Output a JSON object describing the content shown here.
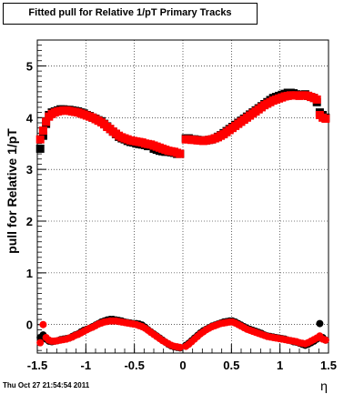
{
  "title": "Fitted pull for Relative 1/pT  Primary Tracks",
  "footer": "Thu Oct 27 21:54:54 2011",
  "chart_data": {
    "type": "scatter",
    "title": "Fitted pull for Relative 1/pT  Primary Tracks",
    "xlabel": "η",
    "ylabel": "pull for Relative 1/pT",
    "xlim": [
      -1.5,
      1.5
    ],
    "ylim": [
      -0.55,
      5.5
    ],
    "x_ticks": [
      "-1.5",
      "-1",
      "-0.5",
      "0",
      "0.5",
      "1",
      "1.5"
    ],
    "y_ticks": [
      "0",
      "1",
      "2",
      "3",
      "4",
      "5"
    ],
    "grid": true,
    "series": [
      {
        "color": "#000000",
        "marker": "square",
        "x": [
          -1.47,
          -1.44,
          -1.41,
          -1.38,
          -1.35,
          -1.32,
          -1.29,
          -1.26,
          -1.23,
          -1.2,
          -1.17,
          -1.14,
          -1.11,
          -1.08,
          -1.05,
          -1.02,
          -0.99,
          -0.96,
          -0.93,
          -0.9,
          -0.87,
          -0.84,
          -0.81,
          -0.78,
          -0.75,
          -0.72,
          -0.69,
          -0.66,
          -0.63,
          -0.6,
          -0.57,
          -0.54,
          -0.51,
          -0.48,
          -0.45,
          -0.42,
          -0.39,
          -0.36,
          -0.33,
          -0.3,
          -0.27,
          -0.24,
          -0.21,
          -0.18,
          -0.15,
          -0.12,
          -0.09,
          -0.06,
          -0.03,
          0.03,
          0.06,
          0.09,
          0.12,
          0.15,
          0.18,
          0.21,
          0.24,
          0.27,
          0.3,
          0.33,
          0.36,
          0.39,
          0.42,
          0.45,
          0.48,
          0.51,
          0.54,
          0.57,
          0.6,
          0.63,
          0.66,
          0.69,
          0.72,
          0.75,
          0.78,
          0.81,
          0.84,
          0.87,
          0.9,
          0.93,
          0.96,
          0.99,
          1.02,
          1.05,
          1.08,
          1.11,
          1.14,
          1.17,
          1.2,
          1.23,
          1.26,
          1.29,
          1.32,
          1.35,
          1.38,
          1.41,
          1.44,
          1.47
        ],
        "y": [
          3.4,
          3.65,
          3.88,
          4.05,
          4.1,
          4.12,
          4.14,
          4.16,
          4.16,
          4.15,
          4.15,
          4.14,
          4.13,
          4.12,
          4.1,
          4.08,
          4.05,
          4.03,
          4.0,
          3.98,
          3.95,
          3.93,
          3.88,
          3.83,
          3.78,
          3.73,
          3.68,
          3.63,
          3.6,
          3.58,
          3.55,
          3.53,
          3.52,
          3.5,
          3.49,
          3.48,
          3.47,
          3.45,
          3.45,
          3.4,
          3.38,
          3.36,
          3.35,
          3.34,
          3.34,
          3.33,
          3.32,
          3.3,
          3.3,
          3.6,
          3.6,
          3.58,
          3.58,
          3.57,
          3.56,
          3.56,
          3.56,
          3.57,
          3.58,
          3.6,
          3.63,
          3.66,
          3.7,
          3.74,
          3.78,
          3.82,
          3.86,
          3.9,
          3.94,
          3.98,
          4.02,
          4.06,
          4.1,
          4.14,
          4.18,
          4.22,
          4.26,
          4.3,
          4.34,
          4.38,
          4.4,
          4.42,
          4.44,
          4.46,
          4.48,
          4.48,
          4.47,
          4.45,
          4.43,
          4.44,
          4.45,
          4.42,
          4.4,
          4.38,
          4.3,
          4.1,
          4.05,
          4.0
        ]
      },
      {
        "color": "#ff0000",
        "marker": "square",
        "x": [
          -1.47,
          -1.44,
          -1.41,
          -1.38,
          -1.35,
          -1.32,
          -1.29,
          -1.26,
          -1.23,
          -1.2,
          -1.17,
          -1.14,
          -1.11,
          -1.08,
          -1.05,
          -1.02,
          -0.99,
          -0.96,
          -0.93,
          -0.9,
          -0.87,
          -0.84,
          -0.81,
          -0.78,
          -0.75,
          -0.72,
          -0.69,
          -0.66,
          -0.63,
          -0.6,
          -0.57,
          -0.54,
          -0.51,
          -0.48,
          -0.45,
          -0.42,
          -0.39,
          -0.36,
          -0.33,
          -0.3,
          -0.27,
          -0.24,
          -0.21,
          -0.18,
          -0.15,
          -0.12,
          -0.09,
          -0.06,
          -0.03,
          0.03,
          0.06,
          0.09,
          0.12,
          0.15,
          0.18,
          0.21,
          0.24,
          0.27,
          0.3,
          0.33,
          0.36,
          0.39,
          0.42,
          0.45,
          0.48,
          0.51,
          0.54,
          0.57,
          0.6,
          0.63,
          0.66,
          0.69,
          0.72,
          0.75,
          0.78,
          0.81,
          0.84,
          0.87,
          0.9,
          0.93,
          0.96,
          0.99,
          1.02,
          1.05,
          1.08,
          1.11,
          1.14,
          1.17,
          1.2,
          1.23,
          1.26,
          1.29,
          1.32,
          1.35,
          1.38,
          1.41,
          1.44,
          1.47
        ],
        "y": [
          3.58,
          3.75,
          3.92,
          4.02,
          4.07,
          4.1,
          4.12,
          4.13,
          4.14,
          4.14,
          4.13,
          4.12,
          4.11,
          4.1,
          4.08,
          4.06,
          4.04,
          4.02,
          4.0,
          3.97,
          3.94,
          3.91,
          3.87,
          3.82,
          3.78,
          3.73,
          3.69,
          3.65,
          3.62,
          3.6,
          3.58,
          3.56,
          3.55,
          3.54,
          3.53,
          3.52,
          3.5,
          3.49,
          3.48,
          3.46,
          3.44,
          3.42,
          3.4,
          3.38,
          3.36,
          3.35,
          3.34,
          3.32,
          3.3,
          3.58,
          3.58,
          3.57,
          3.57,
          3.56,
          3.56,
          3.55,
          3.56,
          3.57,
          3.58,
          3.6,
          3.62,
          3.65,
          3.68,
          3.72,
          3.76,
          3.8,
          3.84,
          3.88,
          3.92,
          3.96,
          4.0,
          4.04,
          4.08,
          4.12,
          4.16,
          4.2,
          4.24,
          4.27,
          4.3,
          4.33,
          4.35,
          4.37,
          4.39,
          4.41,
          4.42,
          4.43,
          4.43,
          4.43,
          4.42,
          4.43,
          4.43,
          4.42,
          4.4,
          4.38,
          4.35,
          4.05,
          4.0,
          3.98
        ]
      },
      {
        "color": "#000000",
        "marker": "circle",
        "x": [
          -1.47,
          -1.44,
          -1.41,
          -1.38,
          -1.35,
          -1.32,
          -1.29,
          -1.26,
          -1.23,
          -1.2,
          -1.17,
          -1.14,
          -1.11,
          -1.08,
          -1.05,
          -1.02,
          -0.99,
          -0.96,
          -0.93,
          -0.9,
          -0.87,
          -0.84,
          -0.81,
          -0.78,
          -0.75,
          -0.72,
          -0.69,
          -0.66,
          -0.63,
          -0.6,
          -0.57,
          -0.54,
          -0.51,
          -0.48,
          -0.45,
          -0.42,
          -0.39,
          -0.36,
          -0.33,
          -0.3,
          -0.27,
          -0.24,
          -0.21,
          -0.18,
          -0.15,
          -0.12,
          -0.09,
          -0.06,
          -0.03,
          0.03,
          0.06,
          0.09,
          0.12,
          0.15,
          0.18,
          0.21,
          0.24,
          0.27,
          0.3,
          0.33,
          0.36,
          0.39,
          0.42,
          0.45,
          0.48,
          0.51,
          0.54,
          0.57,
          0.6,
          0.63,
          0.66,
          0.69,
          0.72,
          0.75,
          0.78,
          0.81,
          0.84,
          0.87,
          0.9,
          0.93,
          0.96,
          0.99,
          1.02,
          1.05,
          1.08,
          1.11,
          1.14,
          1.17,
          1.2,
          1.23,
          1.26,
          1.29,
          1.32,
          1.35,
          1.38,
          1.41,
          1.44,
          1.47
        ],
        "y": [
          -0.25,
          -0.2,
          -0.28,
          -0.32,
          -0.33,
          -0.32,
          -0.31,
          -0.29,
          -0.28,
          -0.27,
          -0.26,
          -0.23,
          -0.2,
          -0.18,
          -0.14,
          -0.11,
          -0.09,
          -0.07,
          -0.04,
          -0.01,
          0.02,
          0.05,
          0.07,
          0.09,
          0.1,
          0.1,
          0.09,
          0.08,
          0.07,
          0.05,
          0.04,
          0.03,
          0.02,
          0.02,
          0.01,
          -0.01,
          -0.05,
          -0.1,
          -0.14,
          -0.18,
          -0.22,
          -0.26,
          -0.3,
          -0.34,
          -0.38,
          -0.41,
          -0.43,
          -0.44,
          -0.45,
          -0.4,
          -0.36,
          -0.31,
          -0.26,
          -0.21,
          -0.16,
          -0.12,
          -0.09,
          -0.06,
          -0.03,
          -0.01,
          0.01,
          0.03,
          0.05,
          0.06,
          0.07,
          0.07,
          0.05,
          0.02,
          -0.01,
          -0.04,
          -0.07,
          -0.09,
          -0.11,
          -0.13,
          -0.15,
          -0.17,
          -0.2,
          -0.22,
          -0.23,
          -0.24,
          -0.25,
          -0.26,
          -0.27,
          -0.28,
          -0.3,
          -0.31,
          -0.33,
          -0.34,
          -0.36,
          -0.38,
          -0.4,
          -0.38,
          -0.35,
          -0.32,
          -0.28,
          0.02,
          -0.25,
          -0.3
        ]
      },
      {
        "color": "#ff0000",
        "marker": "circle",
        "x": [
          -1.47,
          -1.44,
          -1.41,
          -1.38,
          -1.35,
          -1.32,
          -1.29,
          -1.26,
          -1.23,
          -1.2,
          -1.17,
          -1.14,
          -1.11,
          -1.08,
          -1.05,
          -1.02,
          -0.99,
          -0.96,
          -0.93,
          -0.9,
          -0.87,
          -0.84,
          -0.81,
          -0.78,
          -0.75,
          -0.72,
          -0.69,
          -0.66,
          -0.63,
          -0.6,
          -0.57,
          -0.54,
          -0.51,
          -0.48,
          -0.45,
          -0.42,
          -0.39,
          -0.36,
          -0.33,
          -0.3,
          -0.27,
          -0.24,
          -0.21,
          -0.18,
          -0.15,
          -0.12,
          -0.09,
          -0.06,
          -0.03,
          0.03,
          0.06,
          0.09,
          0.12,
          0.15,
          0.18,
          0.21,
          0.24,
          0.27,
          0.3,
          0.33,
          0.36,
          0.39,
          0.42,
          0.45,
          0.48,
          0.51,
          0.54,
          0.57,
          0.6,
          0.63,
          0.66,
          0.69,
          0.72,
          0.75,
          0.78,
          0.81,
          0.84,
          0.87,
          0.9,
          0.93,
          0.96,
          0.99,
          1.02,
          1.05,
          1.08,
          1.11,
          1.14,
          1.17,
          1.2,
          1.23,
          1.26,
          1.29,
          1.32,
          1.35,
          1.38,
          1.41,
          1.44,
          1.47
        ],
        "y": [
          -0.35,
          0.0,
          -0.25,
          -0.3,
          -0.32,
          -0.32,
          -0.31,
          -0.3,
          -0.29,
          -0.28,
          -0.26,
          -0.24,
          -0.21,
          -0.19,
          -0.16,
          -0.13,
          -0.1,
          -0.07,
          -0.05,
          -0.02,
          0.01,
          0.03,
          0.05,
          0.06,
          0.07,
          0.07,
          0.07,
          0.06,
          0.05,
          0.04,
          0.03,
          0.02,
          0.01,
          0.0,
          -0.02,
          -0.04,
          -0.07,
          -0.11,
          -0.15,
          -0.19,
          -0.23,
          -0.27,
          -0.31,
          -0.34,
          -0.37,
          -0.4,
          -0.42,
          -0.43,
          -0.44,
          -0.42,
          -0.38,
          -0.33,
          -0.28,
          -0.23,
          -0.18,
          -0.14,
          -0.1,
          -0.07,
          -0.04,
          -0.02,
          0.0,
          0.02,
          0.03,
          0.04,
          0.05,
          0.05,
          0.03,
          0.0,
          -0.03,
          -0.06,
          -0.09,
          -0.11,
          -0.13,
          -0.15,
          -0.17,
          -0.19,
          -0.21,
          -0.23,
          -0.24,
          -0.25,
          -0.26,
          -0.27,
          -0.28,
          -0.29,
          -0.3,
          -0.31,
          -0.32,
          -0.33,
          -0.35,
          -0.36,
          -0.37,
          -0.35,
          -0.32,
          -0.29,
          -0.26,
          -0.22,
          -0.28,
          -0.3
        ]
      }
    ]
  }
}
